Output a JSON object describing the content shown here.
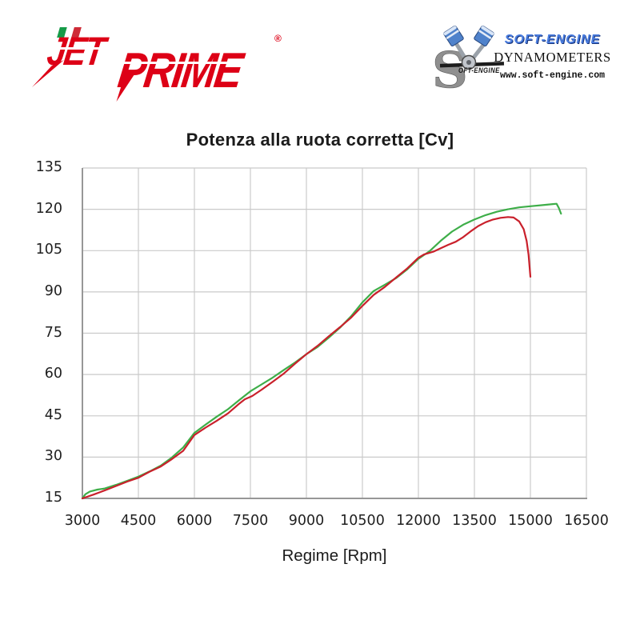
{
  "header": {
    "jetprime": {
      "jet": "JET",
      "prime": "PRIME",
      "registered": "®",
      "brand_color": "#dd0016",
      "flag_colors": [
        "#169b48",
        "#ffffff",
        "#ce2b37"
      ]
    },
    "softengine": {
      "s_big": "S",
      "s_rest": "OFT-ENGINE",
      "brand": "SOFT-ENGINE",
      "brand_color": "#4a7de0",
      "subtitle": "DYNAMOMETERS",
      "url": "www.soft-engine.com",
      "icon": "v-twin-pistons-icon"
    }
  },
  "chart_data": {
    "type": "line",
    "title": "Potenza alla ruota corretta [Cv]",
    "xlabel": "Regime [Rpm]",
    "ylabel": "",
    "xlim": [
      3000,
      16500
    ],
    "ylim": [
      15,
      135
    ],
    "xticks": [
      3000,
      4500,
      6000,
      7500,
      9000,
      10500,
      12000,
      13500,
      15000,
      16500
    ],
    "yticks": [
      15,
      30,
      45,
      60,
      75,
      90,
      105,
      120,
      135
    ],
    "grid": true,
    "grid_color": "#cacaca",
    "axis_color": "#979797",
    "legend": "none",
    "series": [
      {
        "name": "green-run",
        "color": "#3eae49",
        "points": [
          [
            3000,
            15.0
          ],
          [
            3080,
            16.5
          ],
          [
            3200,
            17.5
          ],
          [
            3400,
            18.2
          ],
          [
            3600,
            18.6
          ],
          [
            3900,
            19.9
          ],
          [
            4200,
            21.4
          ],
          [
            4500,
            22.9
          ],
          [
            4800,
            24.8
          ],
          [
            5100,
            26.9
          ],
          [
            5400,
            29.9
          ],
          [
            5700,
            33.5
          ],
          [
            6000,
            38.8
          ],
          [
            6300,
            41.8
          ],
          [
            6600,
            44.7
          ],
          [
            6900,
            47.4
          ],
          [
            7200,
            50.7
          ],
          [
            7500,
            53.9
          ],
          [
            7800,
            56.4
          ],
          [
            8100,
            58.9
          ],
          [
            8400,
            61.7
          ],
          [
            8700,
            64.4
          ],
          [
            9000,
            67.4
          ],
          [
            9300,
            70.0
          ],
          [
            9600,
            73.4
          ],
          [
            9900,
            77.0
          ],
          [
            10200,
            81.2
          ],
          [
            10500,
            86.2
          ],
          [
            10800,
            90.3
          ],
          [
            11100,
            92.6
          ],
          [
            11400,
            95.0
          ],
          [
            11700,
            98.2
          ],
          [
            12000,
            102.0
          ],
          [
            12300,
            104.8
          ],
          [
            12600,
            108.6
          ],
          [
            12900,
            111.9
          ],
          [
            13200,
            114.4
          ],
          [
            13500,
            116.3
          ],
          [
            13800,
            117.9
          ],
          [
            14100,
            119.1
          ],
          [
            14400,
            120.0
          ],
          [
            14700,
            120.7
          ],
          [
            15000,
            121.1
          ],
          [
            15300,
            121.5
          ],
          [
            15600,
            121.9
          ],
          [
            15700,
            122.0
          ],
          [
            15760,
            120.5
          ],
          [
            15820,
            118.4
          ]
        ]
      },
      {
        "name": "red-run",
        "color": "#c9202b",
        "points": [
          [
            3000,
            15.0
          ],
          [
            3300,
            16.4
          ],
          [
            3600,
            17.9
          ],
          [
            3900,
            19.5
          ],
          [
            4200,
            21.1
          ],
          [
            4500,
            22.5
          ],
          [
            4800,
            24.7
          ],
          [
            5100,
            26.6
          ],
          [
            5400,
            29.3
          ],
          [
            5700,
            32.3
          ],
          [
            6000,
            38.0
          ],
          [
            6300,
            40.7
          ],
          [
            6600,
            43.2
          ],
          [
            6900,
            45.9
          ],
          [
            7200,
            49.4
          ],
          [
            7350,
            51.0
          ],
          [
            7550,
            52.2
          ],
          [
            7800,
            54.5
          ],
          [
            8100,
            57.4
          ],
          [
            8400,
            60.4
          ],
          [
            8700,
            64.0
          ],
          [
            9000,
            67.4
          ],
          [
            9300,
            70.4
          ],
          [
            9600,
            73.9
          ],
          [
            9900,
            77.2
          ],
          [
            10200,
            80.7
          ],
          [
            10500,
            84.9
          ],
          [
            10800,
            88.9
          ],
          [
            11100,
            91.8
          ],
          [
            11400,
            95.2
          ],
          [
            11700,
            98.5
          ],
          [
            12000,
            102.4
          ],
          [
            12150,
            103.6
          ],
          [
            12400,
            104.6
          ],
          [
            12600,
            105.9
          ],
          [
            12800,
            107.1
          ],
          [
            13000,
            108.2
          ],
          [
            13200,
            109.9
          ],
          [
            13400,
            112.0
          ],
          [
            13600,
            113.9
          ],
          [
            13800,
            115.3
          ],
          [
            14000,
            116.3
          ],
          [
            14200,
            116.9
          ],
          [
            14400,
            117.2
          ],
          [
            14550,
            117.0
          ],
          [
            14700,
            115.6
          ],
          [
            14820,
            112.8
          ],
          [
            14900,
            108.5
          ],
          [
            14950,
            103.5
          ],
          [
            15000,
            95.5
          ]
        ]
      }
    ]
  }
}
